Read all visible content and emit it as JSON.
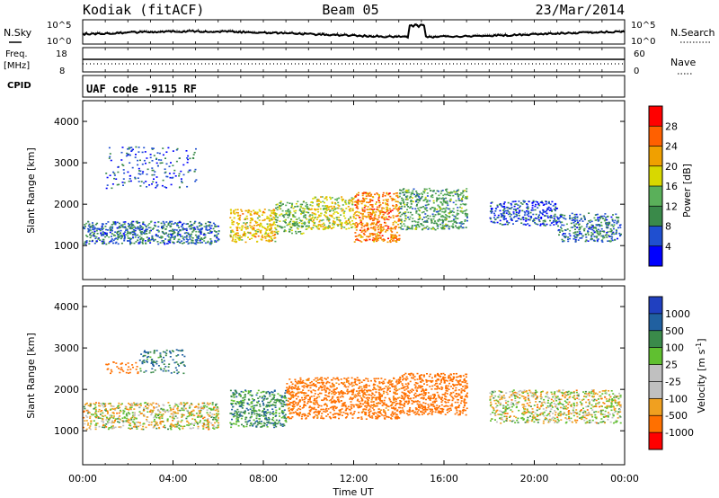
{
  "header": {
    "radar": "Kodiak (fitACF)",
    "beam": "Beam 05",
    "date": "23/Mar/2014"
  },
  "top_panels": {
    "nsky_label": "N.Sky",
    "nsearch_label": "N.Search",
    "noise_ticks": [
      "10^5",
      "10^0"
    ],
    "freq_label": "Freq.",
    "freq_unit": "[MHz]",
    "freq_ticks": [
      "18",
      "8"
    ],
    "nave_label": "Nave",
    "nave_ticks": [
      "60",
      "0"
    ],
    "cpid_label": "CPID",
    "cpid_text": "UAF code -9115 RF"
  },
  "colors": {
    "power": [
      "#0000ff",
      "#1f4fd0",
      "#3a8a4a",
      "#5ab05a",
      "#d8d800",
      "#f0a000",
      "#ff6000",
      "#ff0000"
    ],
    "velocity": [
      "#2040c0",
      "#2060a0",
      "#3a8a4a",
      "#60c030",
      "#c0c0c0",
      "#c0c0c0",
      "#f0a020",
      "#ff7000",
      "#ff0000"
    ]
  },
  "chart_data": [
    {
      "type": "heatmap",
      "title": "Power",
      "xlabel": "Time UT",
      "ylabel": "Slant Range [km]",
      "x_ticks": [
        "00:00",
        "04:00",
        "08:00",
        "12:00",
        "16:00",
        "20:00",
        "00:00"
      ],
      "xlim_hours": [
        0,
        24
      ],
      "y_ticks": [
        1000,
        2000,
        3000,
        4000
      ],
      "ylim": [
        180,
        4500
      ],
      "colorbar": {
        "label": "Power [dB]",
        "ticks": [
          4,
          8,
          12,
          16,
          20,
          24,
          28
        ],
        "range": [
          0,
          32
        ]
      },
      "regions": [
        {
          "t0": 0.0,
          "t1": 6.0,
          "r0": 1050,
          "r1": 1600,
          "level": 8,
          "density": 0.85
        },
        {
          "t0": 6.5,
          "t1": 8.5,
          "r0": 1100,
          "r1": 1900,
          "level": 20,
          "density": 0.8
        },
        {
          "t0": 8.5,
          "t1": 10.0,
          "r0": 1300,
          "r1": 2100,
          "level": 14,
          "density": 0.75
        },
        {
          "t0": 10.0,
          "t1": 12.0,
          "r0": 1400,
          "r1": 2200,
          "level": 18,
          "density": 0.75
        },
        {
          "t0": 12.0,
          "t1": 14.0,
          "r0": 1100,
          "r1": 2300,
          "level": 24,
          "density": 0.85
        },
        {
          "t0": 14.0,
          "t1": 17.0,
          "r0": 1400,
          "r1": 2400,
          "level": 12,
          "density": 0.75
        },
        {
          "t0": 18.0,
          "t1": 21.0,
          "r0": 1500,
          "r1": 2100,
          "level": 6,
          "density": 0.7
        },
        {
          "t0": 21.0,
          "t1": 23.8,
          "r0": 1100,
          "r1": 1800,
          "level": 8,
          "density": 0.7
        },
        {
          "t0": 1.0,
          "t1": 5.0,
          "r0": 2400,
          "r1": 3400,
          "level": 6,
          "density": 0.2
        }
      ]
    },
    {
      "type": "heatmap",
      "title": "Velocity",
      "xlabel": "Time UT",
      "ylabel": "Slant Range [km]",
      "x_ticks": [
        "00:00",
        "04:00",
        "08:00",
        "12:00",
        "16:00",
        "20:00",
        "00:00"
      ],
      "xlim_hours": [
        0,
        24
      ],
      "y_ticks": [
        1000,
        2000,
        3000,
        4000
      ],
      "ylim": [
        180,
        4500
      ],
      "colorbar": {
        "label": "Velocity [m s^-1]",
        "ticks": [
          1000,
          500,
          100,
          25,
          -25,
          -100,
          -500,
          -1000
        ]
      },
      "regions": [
        {
          "t0": 0.0,
          "t1": 6.0,
          "r0": 1050,
          "r1": 1700,
          "vel": 0,
          "density": 0.75
        },
        {
          "t0": 2.5,
          "t1": 4.5,
          "r0": 2400,
          "r1": 3000,
          "vel": 200,
          "density": 0.4
        },
        {
          "t0": 1.0,
          "t1": 2.5,
          "r0": 2400,
          "r1": 2700,
          "vel": -300,
          "density": 0.35
        },
        {
          "t0": 6.5,
          "t1": 9.0,
          "r0": 1100,
          "r1": 2000,
          "vel": 150,
          "density": 0.8
        },
        {
          "t0": 9.0,
          "t1": 14.0,
          "r0": 1300,
          "r1": 2300,
          "vel": -200,
          "density": 0.8
        },
        {
          "t0": 14.0,
          "t1": 17.0,
          "r0": 1400,
          "r1": 2400,
          "vel": -300,
          "density": 0.8
        },
        {
          "t0": 18.0,
          "t1": 23.8,
          "r0": 1200,
          "r1": 2000,
          "vel": 0,
          "density": 0.7
        }
      ]
    }
  ]
}
